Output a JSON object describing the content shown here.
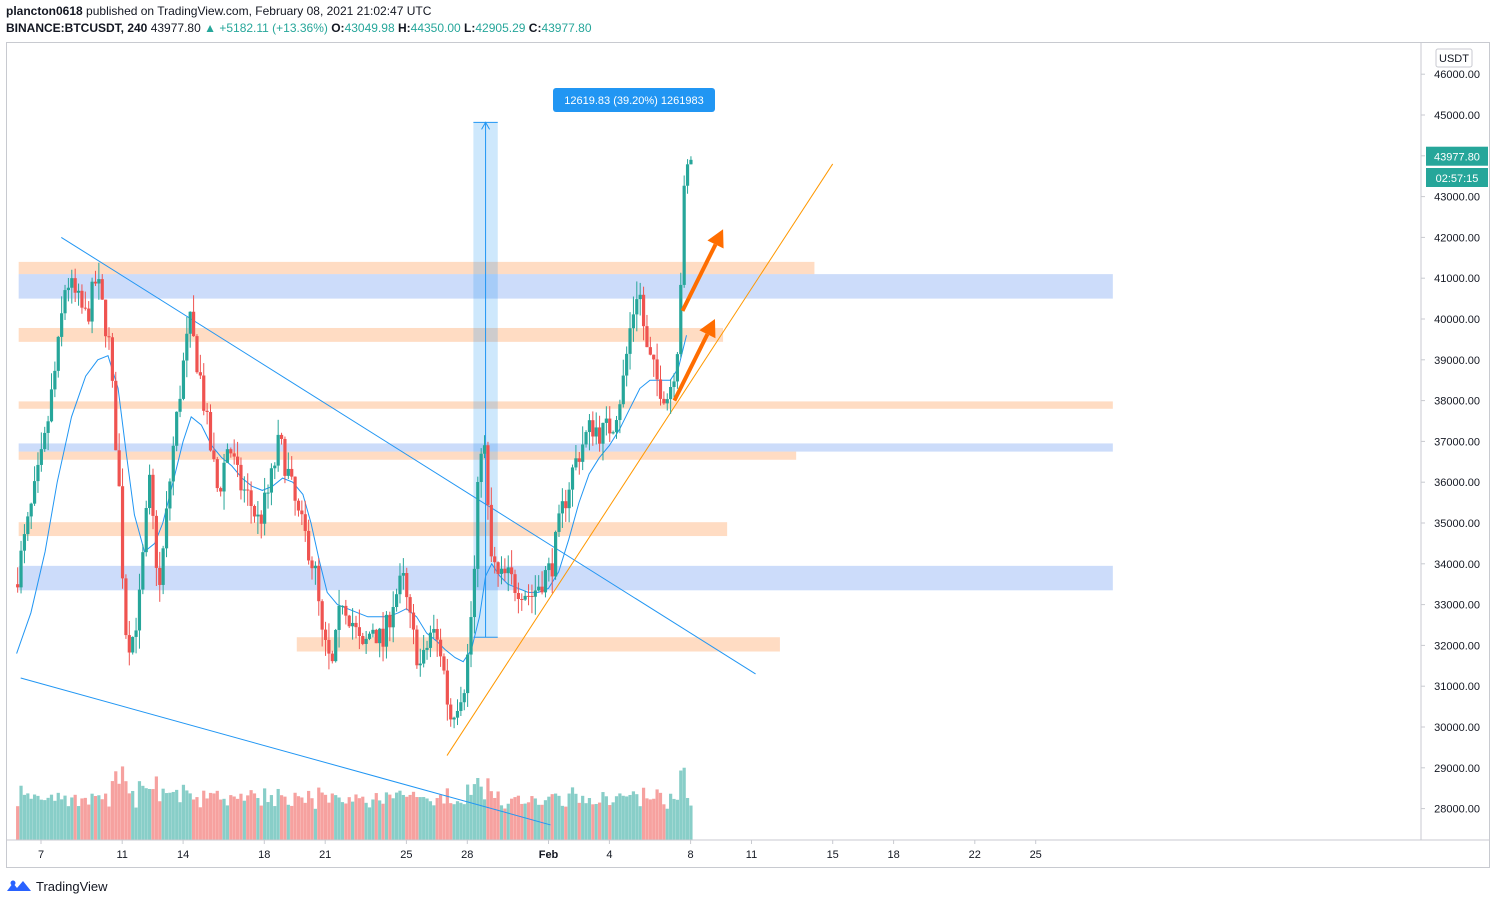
{
  "header": {
    "user": "plancton0618",
    "published_text": "published on TradingView.com, February 08, 2021 21:02:47 UTC",
    "symbol": "BINANCE:BTCUSDT, 240",
    "last": "43977.80",
    "arrow": "▲",
    "change": "+5182.11 (+13.36%)",
    "o_label": "O:",
    "o": "43049.98",
    "h_label": "H:",
    "h": "44350.00",
    "l_label": "L:",
    "l": "42905.29",
    "c_label": "C:",
    "c": "43977.80"
  },
  "price_axis": {
    "currency": "USDT",
    "last_price_label": "43977.80",
    "countdown_label": "02:57:15"
  },
  "measure_label": "12619.83 (39.20%) 1261983",
  "footer": {
    "brand": "TradingView"
  },
  "colors": {
    "up": "#26a69a",
    "down": "#ef5350",
    "ema": "#2196f3",
    "orange_zone": "#ffb27a",
    "blue_zone": "#6c9af2",
    "trendline": "#ff9800",
    "arrow": "#ff6d00",
    "measure": "#2196f3"
  },
  "chart_data": {
    "type": "candlestick",
    "symbol": "BTCUSDT",
    "timeframe": "240",
    "y_axis": {
      "min": 27500,
      "max": 46300,
      "ticks": [
        "28000.00",
        "29000.00",
        "30000.00",
        "31000.00",
        "32000.00",
        "33000.00",
        "34000.00",
        "35000.00",
        "36000.00",
        "37000.00",
        "38000.00",
        "39000.00",
        "40000.00",
        "41000.00",
        "42000.00",
        "43000.00",
        "44000.00",
        "45000.00",
        "46000.00"
      ]
    },
    "x_axis": {
      "labels": [
        {
          "t": "7",
          "day": 7
        },
        {
          "t": "11",
          "day": 11
        },
        {
          "t": "14",
          "day": 14
        },
        {
          "t": "18",
          "day": 18
        },
        {
          "t": "21",
          "day": 21
        },
        {
          "t": "25",
          "day": 25
        },
        {
          "t": "28",
          "day": 28
        },
        {
          "t": "Feb",
          "day": 32,
          "bold": true
        },
        {
          "t": "4",
          "day": 35
        },
        {
          "t": "8",
          "day": 39
        },
        {
          "t": "11",
          "day": 42
        },
        {
          "t": "15",
          "day": 46
        },
        {
          "t": "18",
          "day": 49
        },
        {
          "t": "22",
          "day": 53
        },
        {
          "t": "25",
          "day": 56
        }
      ]
    },
    "price_path": [
      [
        5.9,
        33500
      ],
      [
        6.5,
        34900
      ],
      [
        7.3,
        36800
      ],
      [
        8.0,
        39200
      ],
      [
        8.4,
        41000
      ],
      [
        8.9,
        40500
      ],
      [
        9.4,
        40000
      ],
      [
        9.9,
        41000
      ],
      [
        10.5,
        39500
      ],
      [
        11.0,
        36000
      ],
      [
        11.3,
        32500
      ],
      [
        11.6,
        32000
      ],
      [
        12.0,
        33000
      ],
      [
        12.5,
        36000
      ],
      [
        13.0,
        33300
      ],
      [
        13.6,
        36500
      ],
      [
        14.1,
        38600
      ],
      [
        14.5,
        39900
      ],
      [
        15.0,
        38600
      ],
      [
        15.4,
        37200
      ],
      [
        15.9,
        35700
      ],
      [
        16.4,
        37000
      ],
      [
        16.9,
        36000
      ],
      [
        17.4,
        35600
      ],
      [
        17.9,
        35000
      ],
      [
        18.4,
        35800
      ],
      [
        18.9,
        37000
      ],
      [
        19.3,
        36300
      ],
      [
        19.8,
        35200
      ],
      [
        20.3,
        34500
      ],
      [
        20.7,
        33700
      ],
      [
        21.0,
        32200
      ],
      [
        21.5,
        31400
      ],
      [
        22.0,
        33200
      ],
      [
        22.5,
        32600
      ],
      [
        23.0,
        31800
      ],
      [
        23.5,
        32500
      ],
      [
        24.0,
        32000
      ],
      [
        24.5,
        33100
      ],
      [
        25.0,
        33600
      ],
      [
        25.4,
        32400
      ],
      [
        25.9,
        31400
      ],
      [
        26.4,
        32400
      ],
      [
        26.9,
        31800
      ],
      [
        27.3,
        30200
      ],
      [
        27.7,
        30700
      ],
      [
        28.1,
        31200
      ],
      [
        28.5,
        33600
      ],
      [
        28.8,
        37000
      ],
      [
        29.0,
        36900
      ],
      [
        29.3,
        34200
      ],
      [
        29.7,
        33600
      ],
      [
        30.1,
        33700
      ],
      [
        30.5,
        33500
      ],
      [
        30.9,
        33400
      ],
      [
        31.3,
        33200
      ],
      [
        31.8,
        33600
      ],
      [
        32.3,
        33900
      ],
      [
        32.8,
        35200
      ],
      [
        33.3,
        36200
      ],
      [
        33.8,
        36900
      ],
      [
        34.3,
        37400
      ],
      [
        34.8,
        37200
      ],
      [
        35.3,
        37400
      ],
      [
        35.8,
        38300
      ],
      [
        36.2,
        39800
      ],
      [
        36.6,
        40900
      ],
      [
        37.0,
        39200
      ],
      [
        37.5,
        38500
      ],
      [
        38.0,
        38100
      ],
      [
        38.3,
        38600
      ],
      [
        38.6,
        39700
      ],
      [
        38.8,
        42800
      ],
      [
        39.1,
        43977.8
      ]
    ],
    "volume": {
      "axis_max": 3000000
    },
    "ema_path": [
      [
        5.8,
        31800
      ],
      [
        6.5,
        32800
      ],
      [
        7.2,
        34300
      ],
      [
        7.8,
        36000
      ],
      [
        8.5,
        37600
      ],
      [
        9.2,
        38600
      ],
      [
        9.8,
        39000
      ],
      [
        10.3,
        39100
      ],
      [
        10.8,
        38300
      ],
      [
        11.2,
        36700
      ],
      [
        11.6,
        35200
      ],
      [
        12.1,
        34300
      ],
      [
        12.6,
        34500
      ],
      [
        13.0,
        35000
      ],
      [
        13.5,
        36000
      ],
      [
        14.0,
        37000
      ],
      [
        14.4,
        37600
      ],
      [
        14.9,
        37400
      ],
      [
        15.4,
        36900
      ],
      [
        15.9,
        36600
      ],
      [
        16.4,
        36400
      ],
      [
        16.9,
        36100
      ],
      [
        17.4,
        35900
      ],
      [
        17.9,
        35800
      ],
      [
        18.4,
        35900
      ],
      [
        18.9,
        36100
      ],
      [
        19.4,
        36000
      ],
      [
        19.9,
        35700
      ],
      [
        20.3,
        35000
      ],
      [
        20.7,
        34100
      ],
      [
        21.1,
        33300
      ],
      [
        21.6,
        33000
      ],
      [
        22.1,
        32900
      ],
      [
        22.6,
        32800
      ],
      [
        23.1,
        32700
      ],
      [
        23.6,
        32700
      ],
      [
        24.1,
        32700
      ],
      [
        24.6,
        32800
      ],
      [
        25.0,
        32900
      ],
      [
        25.5,
        32700
      ],
      [
        26.0,
        32300
      ],
      [
        26.5,
        32100
      ],
      [
        26.9,
        31900
      ],
      [
        27.4,
        31700
      ],
      [
        27.8,
        31600
      ],
      [
        28.2,
        31900
      ],
      [
        28.6,
        32700
      ],
      [
        28.9,
        33700
      ],
      [
        29.2,
        34000
      ],
      [
        29.6,
        33700
      ],
      [
        30.0,
        33500
      ],
      [
        30.5,
        33400
      ],
      [
        31.0,
        33300
      ],
      [
        31.5,
        33300
      ],
      [
        32.0,
        33400
      ],
      [
        32.5,
        33800
      ],
      [
        33.0,
        34600
      ],
      [
        33.5,
        35500
      ],
      [
        34.0,
        36200
      ],
      [
        34.5,
        36600
      ],
      [
        35.0,
        36900
      ],
      [
        35.5,
        37300
      ],
      [
        36.0,
        37800
      ],
      [
        36.5,
        38300
      ],
      [
        37.0,
        38500
      ],
      [
        37.5,
        38500
      ],
      [
        38.0,
        38500
      ],
      [
        38.4,
        38800
      ],
      [
        38.8,
        39600
      ]
    ],
    "zones": [
      {
        "kind": "orange",
        "low": 41100,
        "high": 41400,
        "from": 5.9,
        "to": 45.1
      },
      {
        "kind": "blue",
        "low": 40500,
        "high": 41100,
        "from": 5.9,
        "to": 59.8
      },
      {
        "kind": "orange",
        "low": 39440,
        "high": 39780,
        "from": 5.9,
        "to": 40.6
      },
      {
        "kind": "orange",
        "low": 37800,
        "high": 37980,
        "from": 5.9,
        "to": 59.8
      },
      {
        "kind": "blue",
        "low": 36750,
        "high": 36950,
        "from": 5.9,
        "to": 59.8
      },
      {
        "kind": "orange",
        "low": 36550,
        "high": 36750,
        "from": 5.9,
        "to": 44.2
      },
      {
        "kind": "orange",
        "low": 34680,
        "high": 35020,
        "from": 5.9,
        "to": 40.8
      },
      {
        "kind": "blue",
        "low": 33350,
        "high": 33950,
        "from": 5.9,
        "to": 59.8
      },
      {
        "kind": "orange",
        "low": 31850,
        "high": 32200,
        "from": 19.6,
        "to": 43.4
      }
    ],
    "trendlines": [
      {
        "color": "blue",
        "from": [
          8.0,
          42000
        ],
        "to": [
          42.2,
          31300
        ]
      },
      {
        "color": "blue",
        "from": [
          6.0,
          31200
        ],
        "to": [
          32.1,
          27600
        ]
      },
      {
        "color": "orange",
        "from": [
          27.0,
          29300
        ],
        "to": [
          46.0,
          43800
        ]
      }
    ],
    "arrows": [
      {
        "from": [
          38.6,
          40200
        ],
        "to": [
          40.6,
          42200
        ]
      },
      {
        "from": [
          38.2,
          38000
        ],
        "to": [
          40.2,
          40000
        ]
      }
    ],
    "measure": {
      "from_day": 28.3,
      "to_day": 29.5,
      "low": 32200,
      "high": 44820,
      "change": 12619.83,
      "pct": 39.2,
      "volume": 1261983
    }
  }
}
